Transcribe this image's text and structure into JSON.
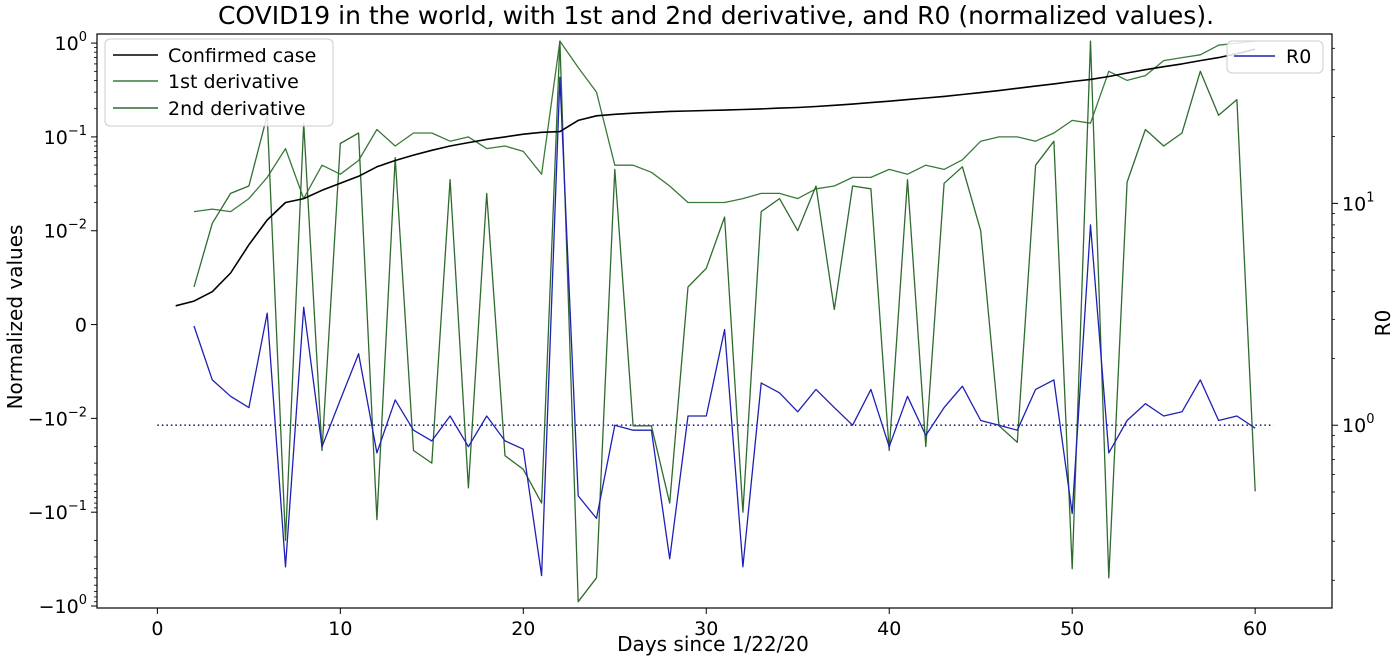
{
  "chart_data": {
    "type": "line",
    "title": "COVID19 in the world, with 1st and 2nd derivative, and R0 (normalized values).",
    "xlabel": "Days since 1/22/20",
    "ylabel": "Normalized values",
    "y2label": "R0",
    "xlim": [
      -3.3,
      64.2
    ],
    "x_ticks": [
      0,
      10,
      20,
      30,
      40,
      50,
      60
    ],
    "x_tick_labels": [
      "0",
      "10",
      "20",
      "30",
      "40",
      "50",
      "60"
    ],
    "y_scale": "symlog",
    "y_linthresh": 0.01,
    "ylim": [
      -1.05,
      1.25
    ],
    "y_ticks": [
      1,
      0.1,
      0.01,
      0,
      -0.01,
      -0.1,
      -1
    ],
    "y_tick_labels": [
      "10^0",
      "10^-1",
      "10^-2",
      "0",
      "−10^-2",
      "−10^-1",
      "−10^0"
    ],
    "y2_scale": "log",
    "y2_ticks": [
      10,
      1
    ],
    "y2_tick_labels": [
      "10^1",
      "10^0"
    ],
    "legend_left": [
      "Confirmed case",
      "1st derivative",
      "2nd derivative"
    ],
    "legend_right": [
      "R0"
    ],
    "colors": {
      "confirmed": "#000000",
      "first_derivative": "#3a7a3a",
      "second_derivative": "#2e6b2e",
      "r0": "#1f1fb4",
      "reference": "#1f1f8c"
    },
    "series": [
      {
        "name": "Confirmed case",
        "x": [
          1,
          2,
          3,
          4,
          5,
          6,
          7,
          8,
          9,
          10,
          11,
          12,
          13,
          14,
          15,
          16,
          17,
          18,
          19,
          20,
          21,
          22,
          23,
          24,
          25,
          26,
          27,
          28,
          29,
          30,
          31,
          32,
          33,
          34,
          35,
          36,
          37,
          38,
          39,
          40,
          41,
          42,
          43,
          44,
          45,
          46,
          47,
          48,
          49,
          50,
          51,
          52,
          53,
          54,
          55,
          56,
          57,
          58,
          59,
          60
        ],
        "y": [
          0.002,
          0.0025,
          0.0035,
          0.0055,
          0.0085,
          0.013,
          0.02,
          0.022,
          0.027,
          0.032,
          0.038,
          0.048,
          0.056,
          0.064,
          0.072,
          0.08,
          0.087,
          0.094,
          0.1,
          0.107,
          0.112,
          0.114,
          0.15,
          0.168,
          0.174,
          0.179,
          0.183,
          0.187,
          0.189,
          0.191,
          0.193,
          0.196,
          0.199,
          0.203,
          0.206,
          0.211,
          0.217,
          0.224,
          0.232,
          0.24,
          0.25,
          0.26,
          0.27,
          0.283,
          0.297,
          0.312,
          0.33,
          0.348,
          0.367,
          0.39,
          0.41,
          0.44,
          0.48,
          0.52,
          0.56,
          0.6,
          0.65,
          0.7,
          0.77,
          0.86
        ]
      },
      {
        "name": "1st derivative",
        "x": [
          2,
          3,
          4,
          5,
          6,
          7,
          8,
          9,
          10,
          11,
          12,
          13,
          14,
          15,
          16,
          17,
          18,
          19,
          20,
          21,
          22,
          23,
          24,
          25,
          26,
          27,
          28,
          29,
          30,
          31,
          32,
          33,
          34,
          35,
          36,
          37,
          38,
          39,
          40,
          41,
          42,
          43,
          44,
          45,
          46,
          47,
          48,
          49,
          50,
          51,
          52,
          53,
          54,
          55,
          56,
          57,
          58,
          59,
          60
        ],
        "y": [
          0.016,
          0.017,
          0.016,
          0.022,
          0.037,
          0.075,
          0.022,
          0.05,
          0.04,
          0.056,
          0.12,
          0.08,
          0.11,
          0.11,
          0.09,
          0.1,
          0.075,
          0.08,
          0.07,
          0.04,
          1.05,
          0.55,
          0.3,
          0.05,
          0.05,
          0.042,
          0.03,
          0.02,
          0.02,
          0.02,
          0.022,
          0.025,
          0.025,
          0.022,
          0.028,
          0.03,
          0.037,
          0.037,
          0.045,
          0.04,
          0.05,
          0.045,
          0.057,
          0.09,
          0.1,
          0.1,
          0.09,
          0.11,
          0.15,
          0.14,
          0.5,
          0.4,
          0.45,
          0.65,
          0.7,
          0.75,
          0.95,
          1.0,
          1.05
        ]
      },
      {
        "name": "2nd derivative",
        "x": [
          2,
          3,
          4,
          5,
          6,
          7,
          8,
          9,
          10,
          11,
          12,
          13,
          14,
          15,
          16,
          17,
          18,
          19,
          20,
          21,
          22,
          23,
          24,
          25,
          26,
          27,
          28,
          29,
          30,
          31,
          32,
          33,
          34,
          35,
          36,
          37,
          38,
          39,
          40,
          41,
          42,
          43,
          44,
          45,
          46,
          47,
          48,
          49,
          50,
          51,
          52,
          53,
          54,
          55,
          56,
          57,
          58,
          59,
          60
        ],
        "y": [
          0.004,
          0.012,
          0.025,
          0.03,
          0.17,
          -0.2,
          0.14,
          -0.022,
          0.085,
          0.11,
          -0.12,
          0.06,
          -0.022,
          -0.03,
          0.035,
          -0.055,
          0.025,
          -0.025,
          -0.035,
          -0.08,
          1.05,
          -0.9,
          -0.5,
          0.045,
          -0.012,
          -0.012,
          -0.08,
          0.004,
          0.006,
          0.014,
          -0.1,
          0.016,
          0.022,
          0.01,
          0.03,
          0.0016,
          0.03,
          0.028,
          -0.022,
          0.035,
          -0.02,
          0.032,
          0.048,
          0.01,
          -0.012,
          -0.018,
          0.05,
          0.09,
          -0.4,
          1.05,
          -0.5,
          0.033,
          0.12,
          0.08,
          0.11,
          0.5,
          0.17,
          0.25,
          -0.06
        ]
      },
      {
        "name": "R0",
        "axis": "y2",
        "x": [
          2,
          3,
          4,
          5,
          6,
          7,
          8,
          9,
          10,
          11,
          12,
          13,
          14,
          15,
          16,
          17,
          18,
          19,
          20,
          21,
          22,
          23,
          24,
          25,
          26,
          27,
          28,
          29,
          30,
          31,
          32,
          33,
          34,
          35,
          36,
          37,
          38,
          39,
          40,
          41,
          42,
          43,
          44,
          45,
          46,
          47,
          48,
          49,
          50,
          51,
          52,
          53,
          54,
          55,
          56,
          57,
          58,
          59,
          60
        ],
        "y": [
          2.8,
          1.6,
          1.35,
          1.2,
          3.2,
          0.23,
          3.4,
          0.8,
          1.3,
          2.1,
          0.75,
          1.3,
          0.95,
          0.85,
          1.1,
          0.8,
          1.1,
          0.85,
          0.78,
          0.21,
          37,
          0.48,
          0.38,
          1.0,
          0.95,
          0.95,
          0.25,
          1.1,
          1.1,
          2.7,
          0.23,
          1.55,
          1.4,
          1.15,
          1.45,
          1.2,
          1.0,
          1.45,
          0.8,
          1.35,
          0.9,
          1.2,
          1.5,
          1.05,
          1.0,
          0.95,
          1.45,
          1.6,
          0.4,
          8.0,
          0.75,
          1.05,
          1.25,
          1.1,
          1.15,
          1.6,
          1.05,
          1.1,
          0.97
        ]
      }
    ],
    "reference_line": {
      "axis": "y2",
      "y": 1,
      "style": "dotted"
    },
    "grid": false,
    "legend_placement_left": "top-left",
    "legend_placement_right": "top-right"
  }
}
